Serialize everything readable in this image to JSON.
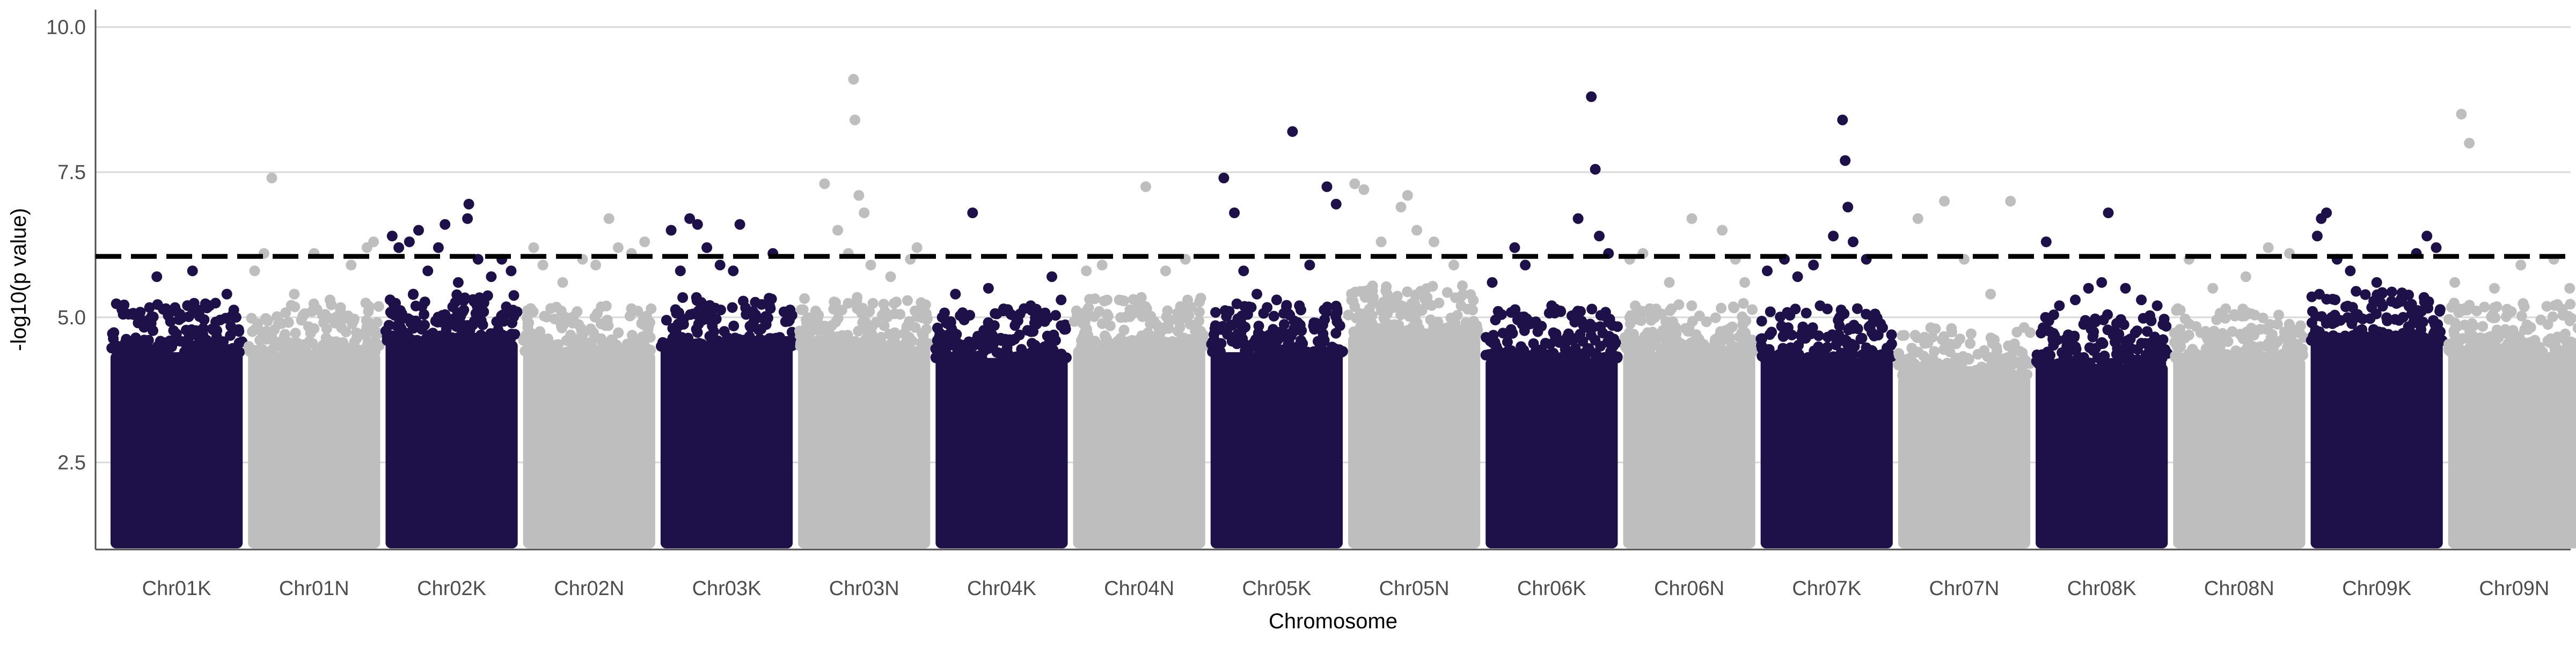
{
  "chart_data": {
    "type": "scatter",
    "title": "",
    "xlabel": "Chromosome",
    "ylabel": "-log10(p value)",
    "ylim": [
      1.0,
      10.3
    ],
    "yticks": [
      2.5,
      5.0,
      7.5,
      10.0
    ],
    "ytick_labels": [
      "2.5",
      "5.0",
      "7.5",
      "10.0"
    ],
    "grid": "horizontal major only",
    "legend": "none",
    "threshold": 6.05,
    "colors": {
      "dark": "#1e1048",
      "light": "#bebebe",
      "threshold": "#000000",
      "grid": "#d9d9d9",
      "axis": "#4d4d4d"
    },
    "categories": [
      "Chr01K",
      "Chr01N",
      "Chr02K",
      "Chr02N",
      "Chr03K",
      "Chr03N",
      "Chr04K",
      "Chr04N",
      "Chr05K",
      "Chr05N",
      "Chr06K",
      "Chr06N",
      "Chr07K",
      "Chr07N",
      "Chr08K",
      "Chr08N",
      "Chr09K",
      "Chr09N"
    ],
    "series": [
      {
        "chromosome": "Chr01K",
        "color": "dark",
        "dense_top": 4.4,
        "outliers": [
          [
            0.1,
            5.2
          ],
          [
            0.22,
            5.0
          ],
          [
            0.35,
            5.7
          ],
          [
            0.5,
            5.1
          ],
          [
            0.62,
            5.8
          ],
          [
            0.75,
            5.2
          ],
          [
            0.88,
            5.4
          ],
          [
            0.95,
            5.0
          ]
        ]
      },
      {
        "chromosome": "Chr01N",
        "color": "light",
        "dense_top": 4.4,
        "outliers": [
          [
            0.05,
            5.8
          ],
          [
            0.12,
            6.1
          ],
          [
            0.18,
            7.4
          ],
          [
            0.35,
            5.4
          ],
          [
            0.5,
            6.1
          ],
          [
            0.62,
            5.3
          ],
          [
            0.78,
            5.9
          ],
          [
            0.9,
            6.2
          ],
          [
            0.95,
            6.3
          ]
        ]
      },
      {
        "chromosome": "Chr02K",
        "color": "dark",
        "dense_top": 4.6,
        "outliers": [
          [
            0.05,
            6.4
          ],
          [
            0.1,
            6.2
          ],
          [
            0.18,
            6.3
          ],
          [
            0.25,
            6.5
          ],
          [
            0.32,
            5.8
          ],
          [
            0.4,
            6.2
          ],
          [
            0.45,
            6.6
          ],
          [
            0.55,
            5.6
          ],
          [
            0.62,
            6.7
          ],
          [
            0.63,
            6.95
          ],
          [
            0.7,
            6.0
          ],
          [
            0.8,
            5.7
          ],
          [
            0.88,
            6.0
          ],
          [
            0.95,
            5.8
          ]
        ]
      },
      {
        "chromosome": "Chr02N",
        "color": "light",
        "dense_top": 4.4,
        "outliers": [
          [
            0.08,
            6.2
          ],
          [
            0.15,
            5.9
          ],
          [
            0.3,
            5.6
          ],
          [
            0.45,
            6.0
          ],
          [
            0.55,
            5.9
          ],
          [
            0.65,
            6.7
          ],
          [
            0.72,
            6.2
          ],
          [
            0.82,
            6.1
          ],
          [
            0.92,
            6.3
          ]
        ]
      },
      {
        "chromosome": "Chr03K",
        "color": "dark",
        "dense_top": 4.5,
        "outliers": [
          [
            0.08,
            6.5
          ],
          [
            0.15,
            5.8
          ],
          [
            0.22,
            6.7
          ],
          [
            0.28,
            6.6
          ],
          [
            0.35,
            6.2
          ],
          [
            0.45,
            5.9
          ],
          [
            0.55,
            5.8
          ],
          [
            0.6,
            6.6
          ],
          [
            0.7,
            5.1
          ],
          [
            0.85,
            6.1
          ]
        ]
      },
      {
        "chromosome": "Chr03N",
        "color": "light",
        "dense_top": 4.5,
        "outliers": [
          [
            0.2,
            7.3
          ],
          [
            0.3,
            6.5
          ],
          [
            0.38,
            6.1
          ],
          [
            0.42,
            9.1
          ],
          [
            0.43,
            8.4
          ],
          [
            0.46,
            7.1
          ],
          [
            0.5,
            6.8
          ],
          [
            0.55,
            5.9
          ],
          [
            0.7,
            5.7
          ],
          [
            0.85,
            6.0
          ],
          [
            0.9,
            6.2
          ]
        ]
      },
      {
        "chromosome": "Chr04K",
        "color": "dark",
        "dense_top": 4.3,
        "outliers": [
          [
            0.05,
            5.0
          ],
          [
            0.15,
            5.4
          ],
          [
            0.28,
            6.8
          ],
          [
            0.4,
            5.5
          ],
          [
            0.55,
            5.1
          ],
          [
            0.72,
            5.2
          ],
          [
            0.88,
            5.7
          ],
          [
            0.95,
            5.3
          ]
        ]
      },
      {
        "chromosome": "Chr04N",
        "color": "light",
        "dense_top": 4.5,
        "outliers": [
          [
            0.1,
            5.8
          ],
          [
            0.22,
            5.9
          ],
          [
            0.35,
            5.3
          ],
          [
            0.55,
            7.25
          ],
          [
            0.7,
            5.8
          ],
          [
            0.85,
            6.0
          ]
        ]
      },
      {
        "chromosome": "Chr05K",
        "color": "dark",
        "dense_top": 4.4,
        "outliers": [
          [
            0.1,
            7.4
          ],
          [
            0.18,
            6.8
          ],
          [
            0.25,
            5.8
          ],
          [
            0.35,
            5.4
          ],
          [
            0.5,
            5.3
          ],
          [
            0.62,
            8.2
          ],
          [
            0.75,
            5.9
          ],
          [
            0.88,
            7.25
          ],
          [
            0.95,
            6.95
          ]
        ]
      },
      {
        "chromosome": "Chr05N",
        "color": "light",
        "dense_top": 4.7,
        "outliers": [
          [
            0.05,
            7.3
          ],
          [
            0.12,
            7.2
          ],
          [
            0.25,
            6.3
          ],
          [
            0.4,
            6.9
          ],
          [
            0.45,
            7.1
          ],
          [
            0.52,
            6.5
          ],
          [
            0.65,
            6.3
          ],
          [
            0.8,
            5.9
          ]
        ]
      },
      {
        "chromosome": "Chr06K",
        "color": "dark",
        "dense_top": 4.3,
        "outliers": [
          [
            0.05,
            5.6
          ],
          [
            0.22,
            6.2
          ],
          [
            0.3,
            5.9
          ],
          [
            0.5,
            5.2
          ],
          [
            0.7,
            6.7
          ],
          [
            0.8,
            8.8
          ],
          [
            0.83,
            7.55
          ],
          [
            0.86,
            6.4
          ],
          [
            0.93,
            6.1
          ]
        ]
      },
      {
        "chromosome": "Chr06N",
        "color": "light",
        "dense_top": 4.4,
        "outliers": [
          [
            0.05,
            6.0
          ],
          [
            0.15,
            6.1
          ],
          [
            0.35,
            5.6
          ],
          [
            0.52,
            6.7
          ],
          [
            0.75,
            6.5
          ],
          [
            0.85,
            6.0
          ],
          [
            0.92,
            5.6
          ]
        ]
      },
      {
        "chromosome": "Chr07K",
        "color": "dark",
        "dense_top": 4.3,
        "outliers": [
          [
            0.05,
            5.8
          ],
          [
            0.18,
            6.0
          ],
          [
            0.28,
            5.7
          ],
          [
            0.4,
            5.9
          ],
          [
            0.45,
            5.2
          ],
          [
            0.55,
            6.4
          ],
          [
            0.62,
            8.4
          ],
          [
            0.64,
            7.7
          ],
          [
            0.66,
            6.9
          ],
          [
            0.7,
            6.3
          ],
          [
            0.8,
            6.0
          ]
        ]
      },
      {
        "chromosome": "Chr07N",
        "color": "light",
        "dense_top": 4.0,
        "outliers": [
          [
            0.15,
            6.7
          ],
          [
            0.35,
            7.0
          ],
          [
            0.5,
            6.0
          ],
          [
            0.7,
            5.4
          ],
          [
            0.85,
            7.0
          ]
        ]
      },
      {
        "chromosome": "Chr08K",
        "color": "dark",
        "dense_top": 4.2,
        "outliers": [
          [
            0.08,
            6.3
          ],
          [
            0.18,
            5.2
          ],
          [
            0.3,
            5.3
          ],
          [
            0.4,
            5.5
          ],
          [
            0.5,
            5.6
          ],
          [
            0.55,
            6.8
          ],
          [
            0.68,
            5.5
          ],
          [
            0.8,
            5.3
          ],
          [
            0.92,
            5.2
          ]
        ]
      },
      {
        "chromosome": "Chr08N",
        "color": "light",
        "dense_top": 4.3,
        "outliers": [
          [
            0.12,
            6.0
          ],
          [
            0.3,
            5.5
          ],
          [
            0.55,
            5.7
          ],
          [
            0.72,
            6.2
          ],
          [
            0.88,
            6.1
          ]
        ]
      },
      {
        "chromosome": "Chr09K",
        "color": "dark",
        "dense_top": 4.6,
        "outliers": [
          [
            0.05,
            6.4
          ],
          [
            0.08,
            6.7
          ],
          [
            0.12,
            6.8
          ],
          [
            0.2,
            6.0
          ],
          [
            0.3,
            5.8
          ],
          [
            0.5,
            5.6
          ],
          [
            0.7,
            5.0
          ],
          [
            0.8,
            6.1
          ],
          [
            0.88,
            6.4
          ],
          [
            0.95,
            6.2
          ]
        ]
      },
      {
        "chromosome": "Chr09N",
        "color": "light",
        "dense_top": 4.4,
        "outliers": [
          [
            0.05,
            5.6
          ],
          [
            0.1,
            8.5
          ],
          [
            0.16,
            8.0
          ],
          [
            0.35,
            5.5
          ],
          [
            0.55,
            5.9
          ],
          [
            0.8,
            6.0
          ],
          [
            0.92,
            5.5
          ]
        ]
      }
    ]
  }
}
